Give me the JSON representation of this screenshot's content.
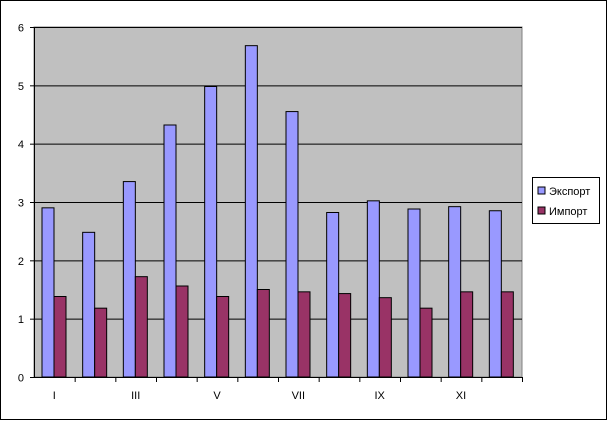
{
  "chart_data": {
    "type": "bar",
    "categories": [
      "I",
      "",
      "III",
      "",
      "V",
      "",
      "VII",
      "",
      "IX",
      "",
      "XI",
      ""
    ],
    "series": [
      {
        "name": "Экспорт",
        "values": [
          2.9,
          2.48,
          3.35,
          4.32,
          4.98,
          5.68,
          4.55,
          2.82,
          3.02,
          2.88,
          2.92,
          2.85
        ],
        "color": "#9999ff"
      },
      {
        "name": "Импорт",
        "values": [
          1.38,
          1.18,
          1.72,
          1.56,
          1.38,
          1.5,
          1.46,
          1.43,
          1.36,
          1.18,
          1.46,
          1.46
        ],
        "color": "#993366"
      }
    ],
    "title": "",
    "xlabel": "",
    "ylabel": "",
    "ylim": [
      0,
      6
    ],
    "yticks": [
      "0",
      "1",
      "2",
      "3",
      "4",
      "5",
      "6"
    ],
    "grid": true,
    "legend": "right",
    "plot_background": "#c0c0c0"
  }
}
